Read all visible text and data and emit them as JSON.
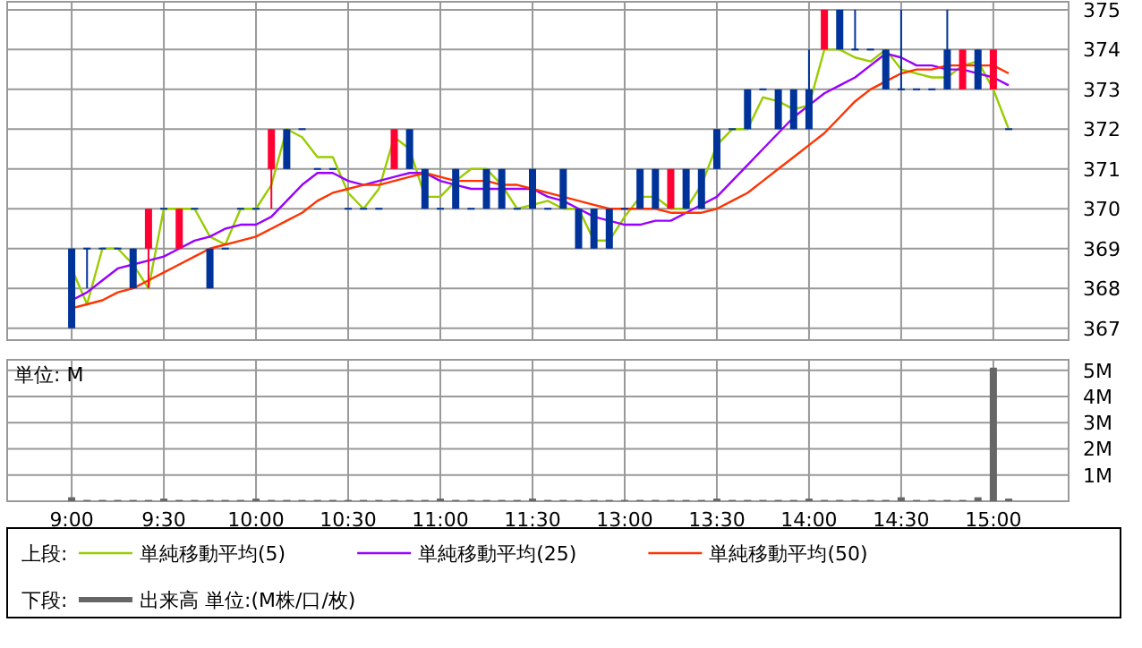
{
  "chart_data": [
    {
      "type": "candlestick",
      "legend_title": "上段:",
      "legend": "bottom",
      "grid": true,
      "tick_labels": "y",
      "categories": [
        null,
        null,
        null,
        null,
        null,
        null,
        null,
        null,
        null,
        null,
        null,
        null,
        null,
        null,
        null,
        null,
        null,
        null,
        null,
        null,
        null,
        null,
        null,
        null,
        null,
        null,
        null,
        null,
        null,
        null,
        null,
        null,
        null,
        null,
        null,
        null,
        null,
        null,
        null,
        null,
        null,
        null,
        null,
        null,
        null,
        null,
        null,
        null,
        null,
        null,
        null,
        null,
        null,
        null,
        null,
        null,
        null,
        null,
        null,
        null,
        null,
        null
      ],
      "ylim": [
        366.7,
        375.2
      ],
      "yticks": [
        367,
        368,
        369,
        370,
        371,
        372,
        373,
        374,
        375
      ],
      "ohlc": [
        [
          369,
          369,
          367,
          367
        ],
        [
          369,
          369,
          368,
          369
        ],
        [
          369,
          369,
          369,
          369
        ],
        [
          369,
          369,
          369,
          369
        ],
        [
          369,
          369,
          368,
          368
        ],
        [
          369,
          370,
          368,
          370
        ],
        [
          370,
          370,
          370,
          370
        ],
        [
          369,
          370,
          369,
          370
        ],
        [
          370,
          370,
          370,
          370
        ],
        [
          369,
          369,
          368,
          368
        ],
        [
          369,
          369,
          369,
          369
        ],
        [
          370,
          370,
          370,
          370
        ],
        [
          370,
          370,
          370,
          370
        ],
        [
          371,
          372,
          370,
          372
        ],
        [
          372,
          372,
          371,
          371
        ],
        [
          372,
          372,
          372,
          372
        ],
        [
          371,
          371,
          371,
          371
        ],
        [
          371,
          371,
          371,
          371
        ],
        [
          370,
          370,
          370,
          370
        ],
        [
          370,
          370,
          370,
          370
        ],
        [
          370,
          370,
          370,
          370
        ],
        [
          371,
          372,
          371,
          372
        ],
        [
          372,
          372,
          371,
          371
        ],
        [
          371,
          371,
          370,
          370
        ],
        [
          370,
          370,
          370,
          370
        ],
        [
          371,
          371,
          370,
          370
        ],
        [
          370,
          370,
          370,
          370
        ],
        [
          371,
          371,
          370,
          370
        ],
        [
          371,
          371,
          370,
          370
        ],
        [
          370,
          370,
          370,
          370
        ],
        [
          371,
          371,
          370,
          370
        ],
        [
          370,
          370,
          370,
          370
        ],
        [
          371,
          371,
          370,
          370
        ],
        [
          370,
          370,
          369,
          369
        ],
        [
          370,
          370,
          369,
          369
        ],
        [
          370,
          370,
          369,
          369
        ],
        [
          370,
          370,
          370,
          370
        ],
        [
          371,
          371,
          370,
          370
        ],
        [
          371,
          371,
          370,
          370
        ],
        [
          370,
          371,
          370,
          371
        ],
        [
          371,
          371,
          370,
          370
        ],
        [
          371,
          371,
          370,
          370
        ],
        [
          372,
          372,
          371,
          371
        ],
        [
          372,
          372,
          372,
          372
        ],
        [
          373,
          373,
          372,
          372
        ],
        [
          373,
          373,
          373,
          373
        ],
        [
          373,
          373,
          372,
          372
        ],
        [
          373,
          373,
          372,
          372
        ],
        [
          373,
          374,
          372,
          372
        ],
        [
          374,
          375,
          374,
          375
        ],
        [
          375,
          375,
          374,
          374
        ],
        [
          374,
          375,
          374,
          374
        ],
        [
          374,
          374,
          374,
          374
        ],
        [
          374,
          374,
          373,
          373
        ],
        [
          373,
          375,
          373,
          373
        ],
        [
          373,
          373,
          373,
          373
        ],
        [
          373,
          373,
          373,
          373
        ],
        [
          374,
          375,
          373,
          373
        ],
        [
          373,
          374,
          373,
          374
        ],
        [
          374,
          374,
          373,
          373
        ],
        [
          373,
          374,
          373,
          374
        ],
        [
          372,
          372,
          372,
          372
        ]
      ],
      "series": [
        {
          "name": "単純移動平均(5)",
          "type": "line",
          "color": "#99cc00",
          "values": [
            368.5,
            367.6,
            369,
            369,
            368.6,
            368,
            370,
            370,
            370,
            369.3,
            369.1,
            370,
            370,
            370.6,
            372,
            371.8,
            371.3,
            371.3,
            370.4,
            370,
            370.5,
            371.8,
            371.5,
            370.3,
            370.3,
            370.7,
            371,
            371,
            370.6,
            370,
            370.1,
            370.2,
            370,
            370,
            369.2,
            369.2,
            369.8,
            370.3,
            370.3,
            370,
            370,
            370.6,
            371.6,
            372,
            372,
            372.8,
            372.7,
            372.5,
            372.6,
            374,
            374,
            373.8,
            373.7,
            374,
            373.5,
            373.4,
            373.3,
            373.3,
            373.6,
            373.7,
            373,
            372
          ]
        },
        {
          "name": "単純移動平均(25)",
          "type": "line",
          "color": "#9900ff",
          "values": [
            367.7,
            367.9,
            368.2,
            368.5,
            368.6,
            368.7,
            368.8,
            369,
            369.2,
            369.3,
            369.5,
            369.6,
            369.6,
            369.8,
            370.2,
            370.6,
            370.9,
            370.9,
            370.7,
            370.6,
            370.7,
            370.8,
            370.9,
            370.9,
            370.7,
            370.6,
            370.5,
            370.5,
            370.5,
            370.5,
            370.5,
            370.3,
            370.2,
            370,
            369.8,
            369.7,
            369.6,
            369.6,
            369.7,
            369.7,
            369.9,
            370.1,
            370.3,
            370.7,
            371.1,
            371.5,
            371.9,
            372.3,
            372.6,
            372.9,
            373.1,
            373.3,
            373.6,
            373.9,
            373.8,
            373.6,
            373.6,
            373.5,
            373.5,
            373.4,
            373.3,
            373.1
          ]
        },
        {
          "name": "単純移動平均(50)",
          "type": "line",
          "color": "#ff3300",
          "values": [
            367.5,
            367.6,
            367.7,
            367.9,
            368,
            368.2,
            368.4,
            368.6,
            368.8,
            369,
            369.1,
            369.2,
            369.3,
            369.5,
            369.7,
            369.9,
            370.2,
            370.4,
            370.5,
            370.6,
            370.6,
            370.7,
            370.8,
            370.9,
            370.8,
            370.7,
            370.7,
            370.7,
            370.6,
            370.6,
            370.5,
            370.4,
            370.3,
            370.2,
            370.1,
            370,
            370,
            370,
            370,
            369.9,
            369.9,
            369.9,
            370,
            370.2,
            370.4,
            370.7,
            371,
            371.3,
            371.6,
            371.9,
            372.3,
            372.7,
            373,
            373.2,
            373.4,
            373.5,
            373.5,
            373.6,
            373.6,
            373.6,
            373.6,
            373.4
          ]
        }
      ]
    },
    {
      "type": "bar",
      "legend_title": "下段:",
      "legend": "bottom",
      "grid": true,
      "annotations": [
        "単位: M"
      ],
      "categories": [
        "9:00",
        null,
        null,
        null,
        null,
        null,
        "9:30",
        null,
        null,
        null,
        null,
        null,
        "10:00",
        null,
        null,
        null,
        null,
        null,
        "10:30",
        null,
        null,
        null,
        null,
        null,
        "11:00",
        null,
        null,
        null,
        null,
        null,
        "11:30",
        null,
        null,
        null,
        null,
        null,
        "13:00",
        null,
        null,
        null,
        null,
        null,
        "13:30",
        null,
        null,
        null,
        null,
        null,
        "14:00",
        null,
        null,
        null,
        null,
        null,
        "14:30",
        null,
        null,
        null,
        null,
        null,
        "15:00",
        null
      ],
      "ylim": [
        0,
        5.4
      ],
      "yticks": [
        {
          "value": 1,
          "label": "1M"
        },
        {
          "value": 2,
          "label": "2M"
        },
        {
          "value": 3,
          "label": "3M"
        },
        {
          "value": 4,
          "label": "4M"
        },
        {
          "value": 5,
          "label": "5M"
        }
      ],
      "series": [
        {
          "name": "出来高 単位:(M株/口/枚)",
          "color": "#666666",
          "values": [
            0.15,
            0.05,
            0.05,
            0.05,
            0.05,
            0.05,
            0.1,
            0.05,
            0.05,
            0.05,
            0.05,
            0.05,
            0.1,
            0.05,
            0.05,
            0.05,
            0.05,
            0.05,
            0.05,
            0.05,
            0.05,
            0.05,
            0.05,
            0.05,
            0.1,
            0.05,
            0.05,
            0.05,
            0.05,
            0.05,
            0.1,
            0.05,
            0.05,
            0.05,
            0.05,
            0.05,
            0.05,
            0.05,
            0.05,
            0.05,
            0.05,
            0.05,
            0.1,
            0.05,
            0.05,
            0.05,
            0.05,
            0.05,
            0.1,
            0.05,
            0.05,
            0.05,
            0.05,
            0.05,
            0.15,
            0.05,
            0.05,
            0.05,
            0.05,
            0.15,
            5.1,
            0.1
          ]
        }
      ]
    }
  ]
}
